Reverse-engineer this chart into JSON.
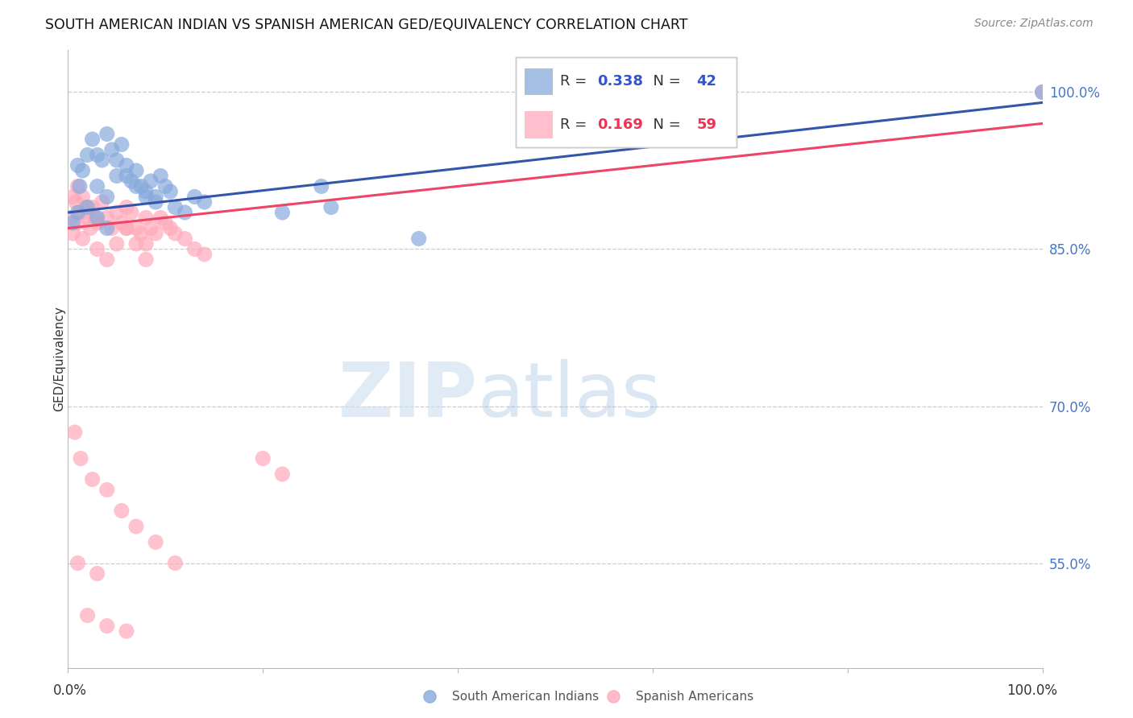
{
  "title": "SOUTH AMERICAN INDIAN VS SPANISH AMERICAN GED/EQUIVALENCY CORRELATION CHART",
  "source": "Source: ZipAtlas.com",
  "ylabel": "GED/Equivalency",
  "blue_r": "0.338",
  "blue_n": "42",
  "pink_r": "0.169",
  "pink_n": "59",
  "blue_color": "#88aadd",
  "pink_color": "#ffaabb",
  "blue_line_color": "#3355aa",
  "pink_line_color": "#ee4466",
  "legend_label_blue": "South American Indians",
  "legend_label_pink": "Spanish Americans",
  "blue_line_x0": 0,
  "blue_line_y0": 88.5,
  "blue_line_x1": 100,
  "blue_line_y1": 99.0,
  "pink_line_x0": 0,
  "pink_line_y0": 87.0,
  "pink_line_x1": 100,
  "pink_line_y1": 97.0,
  "blue_x": [
    1.2,
    2.5,
    3.0,
    3.5,
    4.0,
    4.5,
    5.0,
    5.5,
    6.0,
    6.5,
    7.0,
    7.5,
    8.0,
    8.5,
    9.0,
    9.5,
    10.0,
    10.5,
    11.0,
    12.0,
    13.0,
    14.0,
    1.0,
    1.5,
    2.0,
    3.0,
    4.0,
    5.0,
    6.0,
    7.0,
    8.0,
    9.0,
    0.5,
    1.0,
    2.0,
    3.0,
    4.0,
    26.0,
    27.0,
    36.0,
    22.0,
    100.0
  ],
  "blue_y": [
    91.0,
    95.5,
    94.0,
    93.5,
    96.0,
    94.5,
    92.0,
    95.0,
    93.0,
    91.5,
    92.5,
    91.0,
    90.5,
    91.5,
    90.0,
    92.0,
    91.0,
    90.5,
    89.0,
    88.5,
    90.0,
    89.5,
    93.0,
    92.5,
    94.0,
    91.0,
    90.0,
    93.5,
    92.0,
    91.0,
    90.0,
    89.5,
    87.5,
    88.5,
    89.0,
    88.0,
    87.0,
    91.0,
    89.0,
    86.0,
    88.5,
    100.0
  ],
  "pink_x": [
    0.3,
    0.5,
    0.8,
    1.0,
    1.2,
    1.5,
    1.8,
    2.0,
    2.3,
    2.5,
    2.8,
    3.0,
    3.5,
    4.0,
    4.5,
    5.0,
    5.5,
    6.0,
    6.5,
    7.0,
    7.5,
    8.0,
    8.5,
    9.0,
    9.5,
    10.0,
    10.5,
    11.0,
    12.0,
    13.0,
    14.0,
    0.5,
    1.0,
    1.5,
    2.0,
    3.0,
    4.0,
    5.0,
    6.0,
    7.0,
    8.0,
    0.7,
    1.3,
    2.5,
    4.0,
    5.5,
    7.0,
    9.0,
    11.0,
    1.0,
    3.0,
    20.0,
    22.0,
    6.0,
    8.0,
    2.0,
    4.0,
    6.0,
    100.0
  ],
  "pink_y": [
    88.0,
    90.0,
    89.5,
    91.0,
    88.5,
    90.0,
    89.0,
    88.5,
    87.0,
    89.0,
    88.0,
    87.5,
    89.5,
    88.0,
    87.0,
    88.5,
    87.5,
    89.0,
    88.5,
    87.0,
    86.5,
    88.0,
    87.0,
    86.5,
    88.0,
    87.5,
    87.0,
    86.5,
    86.0,
    85.0,
    84.5,
    86.5,
    87.5,
    86.0,
    88.0,
    85.0,
    84.0,
    85.5,
    87.0,
    85.5,
    84.0,
    67.5,
    65.0,
    63.0,
    62.0,
    60.0,
    58.5,
    57.0,
    55.0,
    55.0,
    54.0,
    65.0,
    63.5,
    87.0,
    85.5,
    50.0,
    49.0,
    48.5,
    100.0
  ],
  "xlim": [
    0,
    100
  ],
  "ylim": [
    45,
    104
  ],
  "ytick_vals": [
    55,
    70,
    85,
    100
  ],
  "ytick_labels": [
    "55.0%",
    "70.0%",
    "85.0%",
    "100.0%"
  ]
}
